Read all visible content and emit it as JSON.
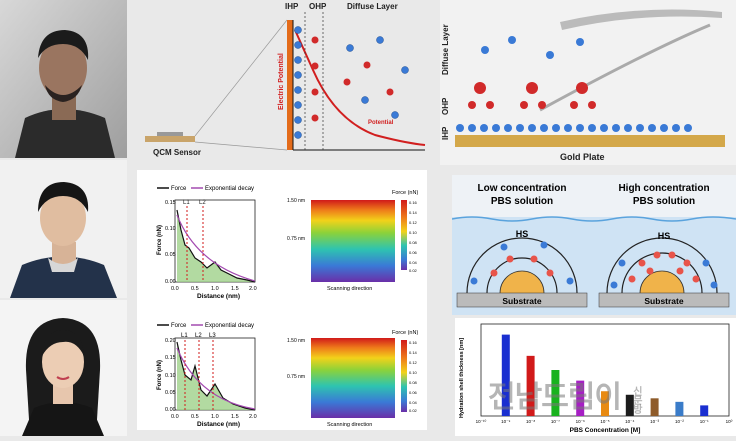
{
  "top": {
    "layers": {
      "ihp": "IHP",
      "ohp": "OHP",
      "diffuse": "Diffuse Layer"
    },
    "electric_potential": "Electric Potential",
    "potential": "Potential",
    "qcm": "QCM Sensor"
  },
  "right_top": {
    "gold_plate": "Gold Plate",
    "diffuse": "Diffuse Layer",
    "ohp": "OHP",
    "ihp": "IHP"
  },
  "graphs": {
    "top": {
      "legend_force": "Force",
      "legend_decay": "Exponential decay",
      "markers": [
        "L1",
        "L2"
      ],
      "xlabel": "Distance (nm)",
      "ylabel": "Force (nN)",
      "yticks": [
        "0.15",
        "0.10",
        "0.05",
        "0.00"
      ],
      "xticks": [
        "0.0",
        "0.5",
        "1.0",
        "1.5",
        "2.0"
      ]
    },
    "bottom": {
      "legend_force": "Force",
      "legend_decay": "Exponential decay",
      "markers": [
        "L1",
        "L2",
        "L3"
      ],
      "xlabel": "Distance (nm)",
      "ylabel": "Force (nN)",
      "yticks": [
        "0.20",
        "0.15",
        "0.10",
        "0.05",
        "0.00"
      ],
      "xticks": [
        "0.0",
        "0.5",
        "1.0",
        "1.5",
        "2.0"
      ]
    }
  },
  "maps": {
    "top": {
      "title": "Force (nN)",
      "y_labels": [
        "1.50 nm",
        "0.75 nm"
      ],
      "xlabel": "Scanning direction",
      "scale": [
        "0.16",
        "0.14",
        "0.12",
        "0.10",
        "0.08",
        "0.06",
        "0.04",
        "0.02"
      ]
    },
    "bottom": {
      "title": "Force (nN)",
      "y_labels": [
        "1.50 nm",
        "0.75 nm"
      ],
      "xlabel": "Scanning direction",
      "scale": [
        "0.16",
        "0.14",
        "0.12",
        "0.10",
        "0.08",
        "0.06",
        "0.04",
        "0.02"
      ]
    }
  },
  "concentration": {
    "low_title": "Low concentration\nPBS solution",
    "high_title": "High concentration\nPBS solution",
    "hs": "HS",
    "substrate": "Substrate"
  },
  "bar_chart": {
    "ylabel": "Hydration shell thickness [nm]",
    "xlabel": "PBS Concentration [M]",
    "xticks": [
      "10⁻¹⁰",
      "10⁻⁹",
      "10⁻⁸",
      "10⁻⁷",
      "10⁻⁶",
      "10⁻⁵",
      "10⁻⁴",
      "10⁻³",
      "10⁻²",
      "10⁻¹",
      "10⁰"
    ],
    "values": [
      1.15,
      0.85,
      0.65,
      0.5,
      0.35,
      0.3,
      0.25,
      0.2,
      0.15
    ],
    "colors": [
      "#1a2fd0",
      "#d11a1a",
      "#19b21e",
      "#a61fc4",
      "#e88a12",
      "#1c1c1c",
      "#8e5b2a",
      "#3a7cc9",
      "#1a2fd0"
    ]
  },
  "watermark": {
    "text": "전남드림이",
    "side": "신문방"
  }
}
